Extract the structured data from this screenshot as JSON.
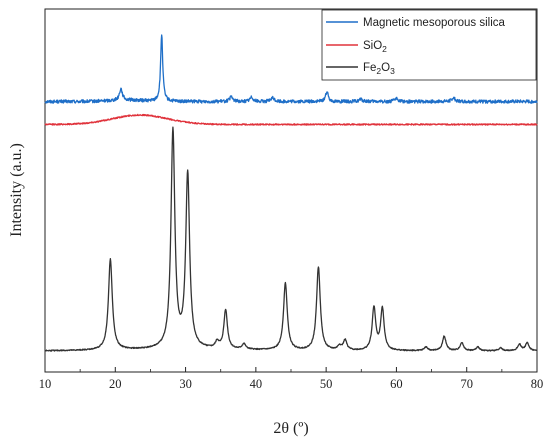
{
  "chart_data": {
    "type": "line",
    "xlabel": "2θ (º)",
    "ylabel": "Intensity (a.u.)",
    "xlim": [
      10,
      80
    ],
    "x_ticks": [
      10,
      20,
      30,
      40,
      50,
      60,
      70,
      80
    ],
    "y_ticks_shown": false,
    "grid": false,
    "legend_position": "top-right",
    "series": [
      {
        "name": "Magnetic mesoporous silica",
        "color": "#1f6fc8",
        "baseline": 0.745,
        "hump": {
          "center": 21.5,
          "width": 3.5,
          "height": 0.004
        },
        "peaks": [
          {
            "x": 20.8,
            "h": 0.032,
            "w": 0.25
          },
          {
            "x": 26.6,
            "h": 0.185,
            "w": 0.18
          },
          {
            "x": 36.5,
            "h": 0.012,
            "w": 0.3
          },
          {
            "x": 39.4,
            "h": 0.012,
            "w": 0.3
          },
          {
            "x": 42.4,
            "h": 0.01,
            "w": 0.3
          },
          {
            "x": 50.1,
            "h": 0.026,
            "w": 0.25
          },
          {
            "x": 54.9,
            "h": 0.006,
            "w": 0.3
          },
          {
            "x": 60.0,
            "h": 0.008,
            "w": 0.3
          },
          {
            "x": 68.1,
            "h": 0.01,
            "w": 0.3
          }
        ],
        "noise": 0.0045
      },
      {
        "name": "SiO2",
        "color": "#e0333c",
        "baseline": 0.682,
        "hump": {
          "center": 23.5,
          "width": 5.5,
          "height": 0.026
        },
        "peaks": [],
        "noise": 0.0018
      },
      {
        "name": "Fe2O3",
        "color": "#333333",
        "baseline": 0.058,
        "hump": {
          "center": 30,
          "width": 12,
          "height": 0.004
        },
        "peaks": [
          {
            "x": 19.3,
            "h": 0.25,
            "w": 0.33
          },
          {
            "x": 28.2,
            "h": 0.6,
            "w": 0.33
          },
          {
            "x": 30.3,
            "h": 0.48,
            "w": 0.33
          },
          {
            "x": 34.5,
            "h": 0.018,
            "w": 0.3
          },
          {
            "x": 35.7,
            "h": 0.108,
            "w": 0.3
          },
          {
            "x": 38.3,
            "h": 0.015,
            "w": 0.3
          },
          {
            "x": 44.2,
            "h": 0.185,
            "w": 0.32
          },
          {
            "x": 48.9,
            "h": 0.23,
            "w": 0.32
          },
          {
            "x": 51.9,
            "h": 0.012,
            "w": 0.3
          },
          {
            "x": 52.7,
            "h": 0.028,
            "w": 0.3
          },
          {
            "x": 56.8,
            "h": 0.118,
            "w": 0.3
          },
          {
            "x": 58.0,
            "h": 0.115,
            "w": 0.3
          },
          {
            "x": 64.2,
            "h": 0.01,
            "w": 0.3
          },
          {
            "x": 66.8,
            "h": 0.04,
            "w": 0.3
          },
          {
            "x": 69.3,
            "h": 0.022,
            "w": 0.3
          },
          {
            "x": 71.6,
            "h": 0.01,
            "w": 0.3
          },
          {
            "x": 74.8,
            "h": 0.008,
            "w": 0.3
          },
          {
            "x": 77.5,
            "h": 0.018,
            "w": 0.3
          },
          {
            "x": 78.6,
            "h": 0.022,
            "w": 0.3
          }
        ],
        "noise": 0.0015
      }
    ]
  },
  "legend": {
    "items": [
      {
        "label_main": "Magnetic mesoporous silica",
        "label_sub": "",
        "label_tail": "",
        "color": "#1f6fc8"
      },
      {
        "label_main": "SiO",
        "label_sub": "2",
        "label_tail": "",
        "color": "#e0333c"
      },
      {
        "label_main": "Fe",
        "label_sub": "2",
        "label_tail": "O",
        "label_sub2": "3",
        "color": "#333333"
      }
    ]
  }
}
